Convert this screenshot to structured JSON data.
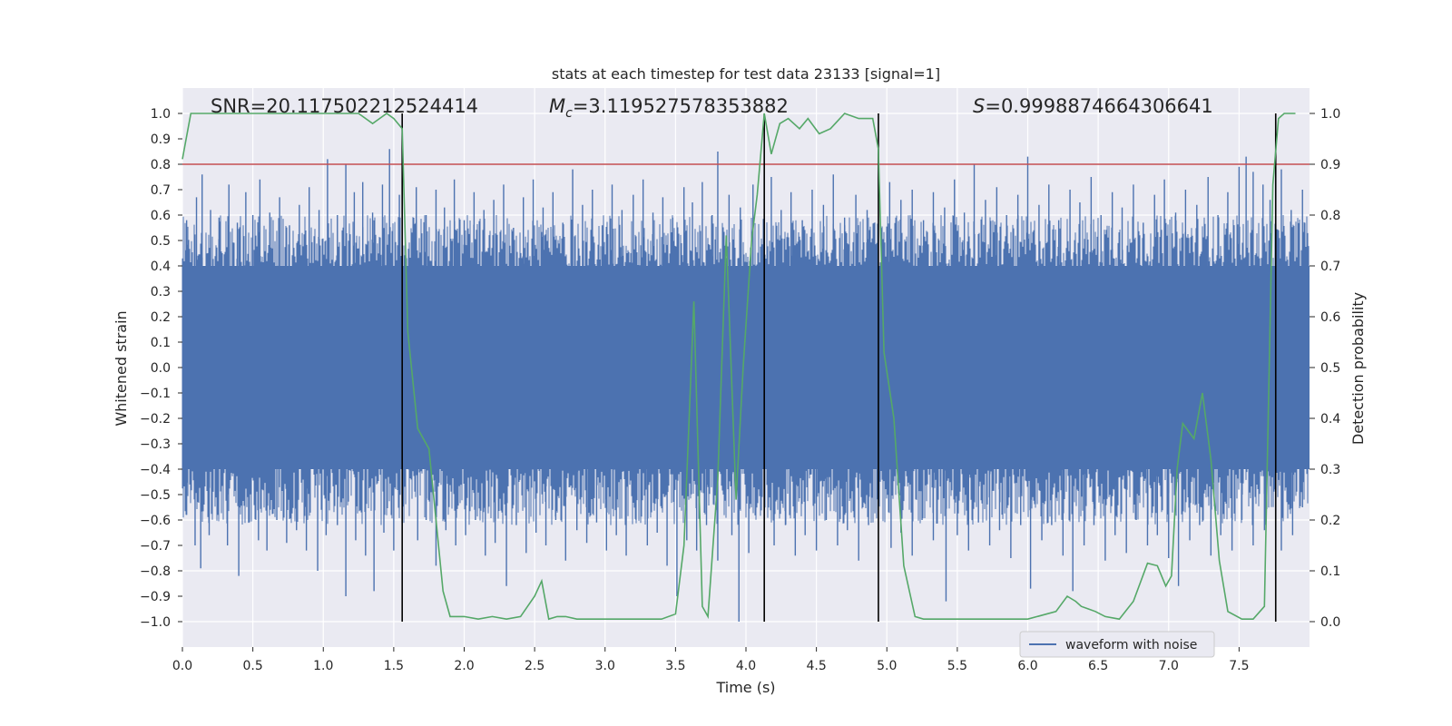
{
  "chart_data": {
    "type": "line",
    "title": "stats at each timestep for test data 23133 [signal=1]",
    "xlabel": "Time (s)",
    "ylabel": "Whitened strain",
    "y2label": "Detection probability",
    "xlim": [
      0.0,
      8.0
    ],
    "ylim": [
      -1.1,
      1.1
    ],
    "y2lim": [
      -0.05,
      1.05
    ],
    "xticks": [
      "0.0",
      "0.5",
      "1.0",
      "1.5",
      "2.0",
      "2.5",
      "3.0",
      "3.5",
      "4.0",
      "4.5",
      "5.0",
      "5.5",
      "6.0",
      "6.5",
      "7.0",
      "7.5"
    ],
    "yticks": [
      "1.0",
      "0.9",
      "0.8",
      "0.7",
      "0.6",
      "0.5",
      "0.4",
      "0.3",
      "0.2",
      "0.1",
      "0.0",
      "−0.1",
      "−0.2",
      "−0.3",
      "−0.4",
      "−0.5",
      "−0.6",
      "−0.7",
      "−0.8",
      "−0.9",
      "−1.0"
    ],
    "y2ticks": [
      "1.0",
      "0.9",
      "0.8",
      "0.7",
      "0.6",
      "0.5",
      "0.4",
      "0.3",
      "0.2",
      "0.1",
      "0.0"
    ],
    "annotations": {
      "snr": "SNR=20.117502212524414",
      "mc_symbol": "M",
      "mc_sub": "c",
      "mc_value": "=3.119527578353882",
      "s_symbol": "S",
      "s_value": "=0.9998874664306641"
    },
    "threshold": {
      "y2": 0.9,
      "color": "#c44e52"
    },
    "vertical_lines": {
      "x": [
        1.56,
        4.13,
        4.94,
        7.76
      ],
      "y_range": [
        -1.0,
        1.0
      ],
      "color": "#000000"
    },
    "waveform": {
      "name": "waveform with noise",
      "color": "#4c72b0",
      "core_band": [
        -0.4,
        0.4
      ],
      "x_range": [
        0.0,
        8.0
      ],
      "spikes_up": [
        [
          0.03,
          0.58
        ],
        [
          0.1,
          0.67
        ],
        [
          0.14,
          0.76
        ],
        [
          0.2,
          0.62
        ],
        [
          0.26,
          0.59
        ],
        [
          0.33,
          0.72
        ],
        [
          0.39,
          0.57
        ],
        [
          0.45,
          0.69
        ],
        [
          0.5,
          0.6
        ],
        [
          0.55,
          0.74
        ],
        [
          0.62,
          0.61
        ],
        [
          0.69,
          0.67
        ],
        [
          0.76,
          0.56
        ],
        [
          0.83,
          0.64
        ],
        [
          0.9,
          0.71
        ],
        [
          0.97,
          0.62
        ],
        [
          1.03,
          0.82
        ],
        [
          1.1,
          0.6
        ],
        [
          1.16,
          0.8
        ],
        [
          1.22,
          0.69
        ],
        [
          1.28,
          0.73
        ],
        [
          1.35,
          0.61
        ],
        [
          1.42,
          0.72
        ],
        [
          1.47,
          0.86
        ],
        [
          1.54,
          0.68
        ],
        [
          1.66,
          0.71
        ],
        [
          1.73,
          0.6
        ],
        [
          1.8,
          0.7
        ],
        [
          1.86,
          0.63
        ],
        [
          1.93,
          0.74
        ],
        [
          2.0,
          0.58
        ],
        [
          2.07,
          0.69
        ],
        [
          2.14,
          0.62
        ],
        [
          2.21,
          0.66
        ],
        [
          2.28,
          0.72
        ],
        [
          2.35,
          0.55
        ],
        [
          2.42,
          0.67
        ],
        [
          2.49,
          0.74
        ],
        [
          2.56,
          0.63
        ],
        [
          2.63,
          0.69
        ],
        [
          2.7,
          0.57
        ],
        [
          2.77,
          0.78
        ],
        [
          2.84,
          0.64
        ],
        [
          2.91,
          0.7
        ],
        [
          2.98,
          0.56
        ],
        [
          3.05,
          0.72
        ],
        [
          3.12,
          0.62
        ],
        [
          3.2,
          0.68
        ],
        [
          3.27,
          0.74
        ],
        [
          3.34,
          0.61
        ],
        [
          3.41,
          0.67
        ],
        [
          3.48,
          0.59
        ],
        [
          3.56,
          0.71
        ],
        [
          3.62,
          0.65
        ],
        [
          3.69,
          0.73
        ],
        [
          3.76,
          0.6
        ],
        [
          3.8,
          0.85
        ],
        [
          3.88,
          0.68
        ],
        [
          3.96,
          0.63
        ],
        [
          4.05,
          0.72
        ],
        [
          4.18,
          0.75
        ],
        [
          4.25,
          0.62
        ],
        [
          4.32,
          0.69
        ],
        [
          4.4,
          0.58
        ],
        [
          4.47,
          0.7
        ],
        [
          4.55,
          0.64
        ],
        [
          4.62,
          0.76
        ],
        [
          4.7,
          0.59
        ],
        [
          4.78,
          0.68
        ],
        [
          4.86,
          0.62
        ],
        [
          5.02,
          0.73
        ],
        [
          5.1,
          0.66
        ],
        [
          5.18,
          0.7
        ],
        [
          5.26,
          0.58
        ],
        [
          5.33,
          0.69
        ],
        [
          5.41,
          0.63
        ],
        [
          5.48,
          0.74
        ],
        [
          5.55,
          0.61
        ],
        [
          5.62,
          0.8
        ],
        [
          5.7,
          0.66
        ],
        [
          5.78,
          0.71
        ],
        [
          5.85,
          0.6
        ],
        [
          5.93,
          0.68
        ],
        [
          6.0,
          0.83
        ],
        [
          6.08,
          0.64
        ],
        [
          6.15,
          0.72
        ],
        [
          6.22,
          0.58
        ],
        [
          6.3,
          0.7
        ],
        [
          6.37,
          0.65
        ],
        [
          6.45,
          0.75
        ],
        [
          6.52,
          0.6
        ],
        [
          6.6,
          0.69
        ],
        [
          6.67,
          0.63
        ],
        [
          6.75,
          0.72
        ],
        [
          6.82,
          0.57
        ],
        [
          6.9,
          0.68
        ],
        [
          6.97,
          0.74
        ],
        [
          7.05,
          0.61
        ],
        [
          7.12,
          0.7
        ],
        [
          7.2,
          0.64
        ],
        [
          7.28,
          0.75
        ],
        [
          7.35,
          0.6
        ],
        [
          7.42,
          0.69
        ],
        [
          7.5,
          0.79
        ],
        [
          7.55,
          0.83
        ],
        [
          7.6,
          0.77
        ],
        [
          7.67,
          0.72
        ],
        [
          7.72,
          0.66
        ],
        [
          7.8,
          0.78
        ],
        [
          7.87,
          0.62
        ],
        [
          7.95,
          0.7
        ]
      ],
      "spikes_down": [
        [
          0.03,
          -0.58
        ],
        [
          0.09,
          -0.7
        ],
        [
          0.13,
          -0.79
        ],
        [
          0.19,
          -0.66
        ],
        [
          0.25,
          -0.58
        ],
        [
          0.32,
          -0.7
        ],
        [
          0.4,
          -0.82
        ],
        [
          0.47,
          -0.61
        ],
        [
          0.54,
          -0.68
        ],
        [
          0.6,
          -0.72
        ],
        [
          0.67,
          -0.6
        ],
        [
          0.74,
          -0.69
        ],
        [
          0.81,
          -0.64
        ],
        [
          0.88,
          -0.72
        ],
        [
          0.96,
          -0.8
        ],
        [
          1.02,
          -0.66
        ],
        [
          1.1,
          -0.62
        ],
        [
          1.16,
          -0.9
        ],
        [
          1.23,
          -0.68
        ],
        [
          1.3,
          -0.74
        ],
        [
          1.36,
          -0.88
        ],
        [
          1.43,
          -0.65
        ],
        [
          1.5,
          -0.72
        ],
        [
          1.67,
          -0.68
        ],
        [
          1.73,
          -0.6
        ],
        [
          1.8,
          -0.78
        ],
        [
          1.87,
          -0.64
        ],
        [
          1.94,
          -0.7
        ],
        [
          2.01,
          -0.66
        ],
        [
          2.08,
          -0.6
        ],
        [
          2.15,
          -0.74
        ],
        [
          2.22,
          -0.69
        ],
        [
          2.3,
          -0.86
        ],
        [
          2.37,
          -0.62
        ],
        [
          2.44,
          -0.73
        ],
        [
          2.51,
          -0.65
        ],
        [
          2.58,
          -0.7
        ],
        [
          2.65,
          -0.6
        ],
        [
          2.72,
          -0.76
        ],
        [
          2.8,
          -0.64
        ],
        [
          2.87,
          -0.69
        ],
        [
          2.94,
          -0.61
        ],
        [
          3.01,
          -0.72
        ],
        [
          3.08,
          -0.66
        ],
        [
          3.15,
          -0.74
        ],
        [
          3.22,
          -0.6
        ],
        [
          3.3,
          -0.7
        ],
        [
          3.37,
          -0.65
        ],
        [
          3.44,
          -0.78
        ],
        [
          3.51,
          -0.9
        ],
        [
          3.58,
          -0.68
        ],
        [
          3.65,
          -0.72
        ],
        [
          3.72,
          -0.62
        ],
        [
          3.8,
          -0.76
        ],
        [
          3.9,
          -0.66
        ],
        [
          3.95,
          -1.0
        ],
        [
          4.02,
          -0.73
        ],
        [
          4.2,
          -0.7
        ],
        [
          4.28,
          -0.62
        ],
        [
          4.35,
          -0.74
        ],
        [
          4.42,
          -0.66
        ],
        [
          4.5,
          -0.72
        ],
        [
          4.57,
          -0.6
        ],
        [
          4.65,
          -0.7
        ],
        [
          4.72,
          -0.64
        ],
        [
          4.8,
          -0.76
        ],
        [
          4.87,
          -0.62
        ],
        [
          5.03,
          -0.71
        ],
        [
          5.1,
          -0.65
        ],
        [
          5.18,
          -0.74
        ],
        [
          5.25,
          -0.6
        ],
        [
          5.33,
          -0.68
        ],
        [
          5.42,
          -0.92
        ],
        [
          5.5,
          -0.66
        ],
        [
          5.58,
          -0.72
        ],
        [
          5.65,
          -0.61
        ],
        [
          5.73,
          -0.7
        ],
        [
          5.8,
          -0.64
        ],
        [
          5.88,
          -0.75
        ],
        [
          5.95,
          -0.62
        ],
        [
          6.02,
          -0.87
        ],
        [
          6.1,
          -0.68
        ],
        [
          6.17,
          -0.62
        ],
        [
          6.25,
          -0.74
        ],
        [
          6.32,
          -0.88
        ],
        [
          6.4,
          -0.7
        ],
        [
          6.47,
          -0.62
        ],
        [
          6.55,
          -0.76
        ],
        [
          6.62,
          -0.66
        ],
        [
          6.7,
          -0.73
        ],
        [
          6.77,
          -0.6
        ],
        [
          6.85,
          -0.7
        ],
        [
          6.92,
          -0.66
        ],
        [
          7.0,
          -0.75
        ],
        [
          7.07,
          -0.86
        ],
        [
          7.15,
          -0.68
        ],
        [
          7.22,
          -0.62
        ],
        [
          7.3,
          -0.74
        ],
        [
          7.37,
          -0.66
        ],
        [
          7.45,
          -0.72
        ],
        [
          7.52,
          -0.6
        ],
        [
          7.6,
          -0.7
        ],
        [
          7.68,
          -0.64
        ],
        [
          7.8,
          -0.72
        ],
        [
          7.88,
          -0.66
        ],
        [
          7.95,
          -0.55
        ]
      ]
    },
    "detection_probability": {
      "color": "#55a868",
      "x": [
        0.0,
        0.06,
        0.15,
        0.3,
        0.5,
        0.75,
        1.0,
        1.25,
        1.35,
        1.45,
        1.5,
        1.56,
        1.6,
        1.67,
        1.75,
        1.85,
        1.9,
        2.0,
        2.1,
        2.2,
        2.3,
        2.4,
        2.5,
        2.55,
        2.6,
        2.66,
        2.72,
        2.8,
        2.88,
        3.0,
        3.2,
        3.4,
        3.5,
        3.56,
        3.63,
        3.69,
        3.73,
        3.8,
        3.86,
        3.93,
        3.98,
        4.04,
        4.08,
        4.13,
        4.18,
        4.24,
        4.3,
        4.38,
        4.44,
        4.52,
        4.6,
        4.7,
        4.8,
        4.9,
        4.94,
        4.98,
        5.05,
        5.12,
        5.2,
        5.26,
        5.4,
        5.6,
        5.8,
        6.0,
        6.2,
        6.28,
        6.34,
        6.38,
        6.43,
        6.48,
        6.55,
        6.65,
        6.75,
        6.85,
        6.92,
        6.98,
        7.02,
        7.06,
        7.1,
        7.18,
        7.24,
        7.3,
        7.36,
        7.42,
        7.52,
        7.6,
        7.68,
        7.74,
        7.78,
        7.82,
        7.9
      ],
      "y": [
        0.91,
        1.0,
        1.0,
        1.0,
        1.0,
        1.0,
        1.0,
        1.0,
        0.98,
        1.0,
        0.99,
        0.97,
        0.57,
        0.38,
        0.34,
        0.06,
        0.01,
        0.01,
        0.005,
        0.01,
        0.005,
        0.01,
        0.05,
        0.08,
        0.005,
        0.01,
        0.01,
        0.005,
        0.005,
        0.005,
        0.005,
        0.005,
        0.015,
        0.15,
        0.63,
        0.03,
        0.01,
        0.28,
        0.76,
        0.24,
        0.5,
        0.75,
        0.84,
        1.0,
        0.92,
        0.98,
        0.99,
        0.97,
        0.99,
        0.96,
        0.97,
        1.0,
        0.99,
        0.99,
        0.93,
        0.53,
        0.4,
        0.11,
        0.01,
        0.005,
        0.005,
        0.005,
        0.005,
        0.005,
        0.02,
        0.05,
        0.04,
        0.03,
        0.025,
        0.02,
        0.01,
        0.005,
        0.04,
        0.115,
        0.11,
        0.07,
        0.09,
        0.3,
        0.39,
        0.36,
        0.45,
        0.32,
        0.12,
        0.02,
        0.005,
        0.005,
        0.03,
        0.86,
        0.99,
        1.0,
        1.0
      ]
    },
    "legend": {
      "label": "waveform with noise",
      "position": "lower-right"
    }
  }
}
